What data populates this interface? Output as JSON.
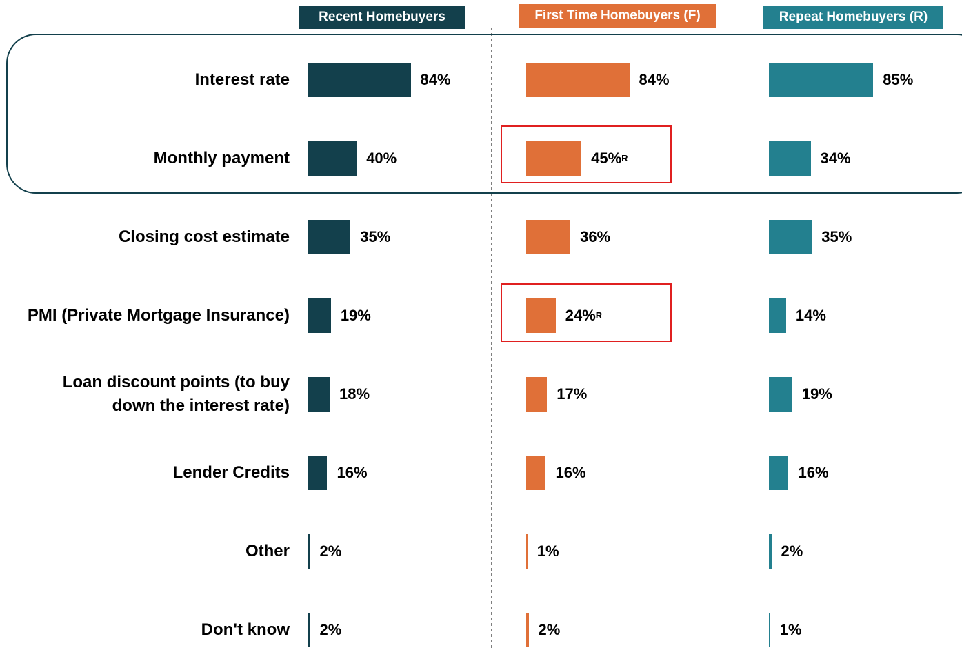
{
  "chart_data": {
    "type": "bar",
    "categories": [
      "Interest rate",
      "Monthly payment",
      "Closing cost estimate",
      "PMI (Private Mortgage Insurance)",
      "Loan discount points (to buy down the interest rate)",
      "Lender Credits",
      "Other",
      "Don't know"
    ],
    "series": [
      {
        "name": "Recent Homebuyers",
        "color": "#13404c",
        "values": [
          84,
          40,
          35,
          19,
          18,
          16,
          2,
          2
        ],
        "value_labels": [
          "84%",
          "40%",
          "35%",
          "19%",
          "18%",
          "16%",
          "2%",
          "2%"
        ]
      },
      {
        "name": "First Time Homebuyers (F)",
        "color": "#e07038",
        "values": [
          84,
          45,
          36,
          24,
          17,
          16,
          1,
          2
        ],
        "value_labels": [
          "84%",
          "45%",
          "36%",
          "24%",
          "17%",
          "16%",
          "1%",
          "2%"
        ],
        "markers": [
          null,
          "R",
          null,
          "R",
          null,
          null,
          null,
          null
        ]
      },
      {
        "name": "Repeat Homebuyers (R)",
        "color": "#23808f",
        "values": [
          85,
          34,
          35,
          14,
          19,
          16,
          2,
          1
        ],
        "value_labels": [
          "85%",
          "34%",
          "35%",
          "14%",
          "19%",
          "16%",
          "2%",
          "1%"
        ]
      }
    ]
  }
}
